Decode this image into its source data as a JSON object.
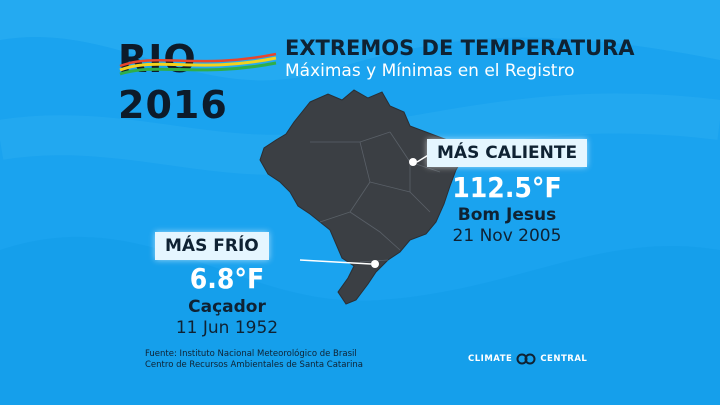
{
  "logo": {
    "text": "RIO 2016"
  },
  "header": {
    "title": "EXTREMOS DE TEMPERATURA",
    "subtitle": "Máximas y Mínimas en el Registro"
  },
  "hottest": {
    "label": "MÁS CALIENTE",
    "temperature": "112.5°F",
    "place": "Bom Jesus",
    "date": "21 Nov 2005"
  },
  "coldest": {
    "label": "MÁS FRÍO",
    "temperature": "6.8°F",
    "place": "Caçador",
    "date": "11 Jun 1952"
  },
  "source": {
    "line1": "Fuente: Instituto Nacional Meteorológico de Brasil",
    "line2": "Centro de Recursos Ambientales de Santa Catarina"
  },
  "brand": {
    "left": "CLIMATE",
    "right": "CENTRAL"
  },
  "colors": {
    "background": "#1aa3ef",
    "map_fill": "#3b3f44",
    "label_box": "#e5f6ff",
    "dark_text": "#0f2233"
  },
  "icons": {
    "brand_mark": "climate-central-logo-icon",
    "marker": "location-dot-icon"
  }
}
